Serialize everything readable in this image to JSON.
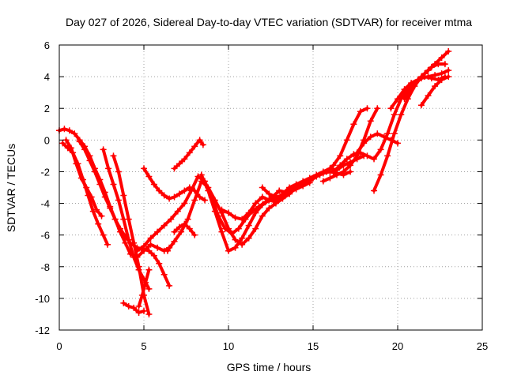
{
  "chart_data": {
    "type": "scatter",
    "title": "Day 027 of 2026, Sidereal Day-to-day VTEC variation (SDTVAR) for receiver mtma",
    "xlabel": "GPS time / hours",
    "ylabel": "SDTVAR / TECUs",
    "xlim": [
      0,
      25
    ],
    "ylim": [
      -12,
      6
    ],
    "xticks": [
      "0",
      "5",
      "10",
      "15",
      "20",
      "25"
    ],
    "yticks": [
      "6",
      "4",
      "2",
      "0",
      "-2",
      "-4",
      "-6",
      "-8",
      "-10",
      "-12"
    ],
    "grid": true,
    "marker": "+",
    "color": "#ff0000",
    "series": [
      {
        "x": [
          0.0,
          0.3,
          0.6,
          0.9,
          1.2,
          1.5,
          1.8,
          2.1,
          2.4,
          2.7,
          3.0,
          3.3,
          3.6,
          3.9,
          4.2,
          4.6,
          5.0,
          5.4,
          5.8,
          6.2,
          6.5
        ],
        "y": [
          0.6,
          0.7,
          0.6,
          0.4,
          0.0,
          -0.4,
          -1.0,
          -1.8,
          -2.5,
          -3.3,
          -4.2,
          -5.0,
          -5.8,
          -6.5,
          -7.2,
          -7.4,
          -7.0,
          -6.6,
          -6.8,
          -7.0,
          -6.8
        ]
      },
      {
        "x": [
          0.2,
          0.5,
          0.8,
          1.1,
          1.4,
          1.7,
          2.0,
          2.3,
          2.6,
          2.85
        ],
        "y": [
          -0.2,
          -0.5,
          -0.8,
          -1.5,
          -2.5,
          -3.5,
          -4.5,
          -5.3,
          -6.0,
          -6.6
        ]
      },
      {
        "x": [
          0.4,
          0.7,
          1.0,
          1.3,
          1.6,
          1.9,
          2.2,
          2.5
        ],
        "y": [
          0.0,
          -0.5,
          -1.5,
          -2.4,
          -3.0,
          -3.6,
          -4.4,
          -4.8
        ]
      },
      {
        "x": [
          1.2,
          1.5,
          1.8,
          2.1,
          2.4,
          2.7,
          3.0,
          3.3,
          3.6,
          3.9,
          4.2,
          4.6,
          5.0,
          5.3,
          5.6,
          5.9,
          6.2,
          6.5
        ],
        "y": [
          -0.1,
          -0.6,
          -1.3,
          -2.0,
          -2.8,
          -3.6,
          -4.3,
          -5.0,
          -5.6,
          -6.1,
          -6.5,
          -6.8,
          -6.9,
          -7.0,
          -7.3,
          -7.8,
          -8.5,
          -9.2
        ]
      },
      {
        "x": [
          2.6,
          2.9,
          3.2,
          3.5,
          3.8,
          4.1,
          4.4,
          4.7,
          5.0,
          5.3
        ],
        "y": [
          -0.6,
          -1.8,
          -2.8,
          -3.8,
          -5.0,
          -6.3,
          -7.4,
          -8.2,
          -8.8,
          -9.4
        ]
      },
      {
        "x": [
          3.2,
          3.5,
          3.8,
          4.1,
          4.4,
          4.7,
          5.0,
          5.3
        ],
        "y": [
          -1.0,
          -2.0,
          -3.5,
          -5.0,
          -6.5,
          -8.0,
          -9.8,
          -11.0
        ]
      },
      {
        "x": [
          3.8,
          4.1,
          4.4,
          4.7,
          5.0
        ],
        "y": [
          -10.3,
          -10.5,
          -10.6,
          -10.9,
          -10.8
        ]
      },
      {
        "x": [
          4.7,
          4.9,
          5.1,
          5.3
        ],
        "y": [
          -10.5,
          -9.8,
          -9.0,
          -8.2
        ]
      },
      {
        "x": [
          4.6,
          5.0,
          5.4,
          5.8,
          6.2,
          6.6,
          7.0,
          7.4,
          7.8,
          8.2,
          8.6,
          9.0,
          9.4,
          9.8,
          10.2,
          10.6,
          11.0,
          11.4,
          11.8,
          12.2,
          12.6,
          13.0,
          13.4,
          13.8,
          14.2,
          14.6
        ],
        "y": [
          -7.0,
          -6.7,
          -6.2,
          -5.8,
          -5.4,
          -5.0,
          -4.5,
          -4.0,
          -3.2,
          -2.3,
          -2.6,
          -3.6,
          -4.8,
          -5.6,
          -5.9,
          -5.6,
          -5.0,
          -4.5,
          -4.2,
          -3.9,
          -3.6,
          -3.2,
          -3.3,
          -3.0,
          -2.8,
          -2.6
        ]
      },
      {
        "x": [
          6.4,
          6.8,
          7.2,
          7.6,
          8.0,
          8.4,
          8.8,
          9.2,
          9.6,
          10.0,
          10.4,
          10.8,
          11.2,
          11.6,
          12.0,
          12.4,
          12.8,
          13.2,
          13.6,
          14.0,
          14.4,
          14.8,
          15.2
        ],
        "y": [
          -7.0,
          -6.4,
          -5.8,
          -5.0,
          -3.8,
          -2.6,
          -3.0,
          -3.8,
          -4.6,
          -5.6,
          -6.3,
          -6.6,
          -6.2,
          -5.6,
          -4.8,
          -4.3,
          -4.0,
          -3.7,
          -3.4,
          -3.0,
          -2.8,
          -2.6,
          -2.3
        ]
      },
      {
        "x": [
          5.0,
          5.3,
          5.6,
          5.9,
          6.2,
          6.5,
          6.8,
          7.1,
          7.4,
          7.7,
          8.0,
          8.3,
          8.6
        ],
        "y": [
          -1.8,
          -2.3,
          -2.8,
          -3.2,
          -3.5,
          -3.7,
          -3.6,
          -3.4,
          -3.2,
          -3.0,
          -3.2,
          -3.6,
          -3.8
        ]
      },
      {
        "x": [
          6.8,
          7.1,
          7.4,
          7.7,
          8.0
        ],
        "y": [
          -5.8,
          -5.5,
          -5.3,
          -5.6,
          -6.0
        ]
      },
      {
        "x": [
          6.8,
          7.1,
          7.4,
          7.7,
          8.0,
          8.3,
          8.5
        ],
        "y": [
          -1.8,
          -1.5,
          -1.2,
          -0.8,
          -0.4,
          0.0,
          -0.3
        ]
      },
      {
        "x": [
          8.4,
          8.8,
          9.2,
          9.6,
          10.0,
          10.4,
          10.8,
          11.2,
          11.6,
          12.0,
          12.4,
          12.8,
          13.2,
          13.6,
          14.0,
          14.4,
          14.8
        ],
        "y": [
          -2.2,
          -3.2,
          -4.5,
          -5.8,
          -7.0,
          -6.8,
          -6.2,
          -5.4,
          -4.6,
          -4.1,
          -3.8,
          -3.6,
          -3.5,
          -3.3,
          -3.1,
          -2.9,
          -2.7
        ]
      },
      {
        "x": [
          9.6,
          10.0,
          10.4,
          10.8,
          11.2,
          11.6,
          12.0,
          12.4,
          12.8,
          13.2,
          13.6,
          14.0,
          14.4,
          14.8,
          15.2,
          15.6,
          16.0,
          16.4,
          16.8,
          17.2,
          17.6,
          18.0
        ],
        "y": [
          -4.4,
          -4.6,
          -4.9,
          -5.0,
          -4.6,
          -4.0,
          -3.6,
          -3.8,
          -3.9,
          -3.6,
          -3.4,
          -3.0,
          -2.8,
          -2.5,
          -2.2,
          -2.0,
          -1.8,
          -1.9,
          -1.6,
          -1.4,
          -1.2,
          -1.0
        ]
      },
      {
        "x": [
          12.0,
          12.4,
          12.8,
          13.2,
          13.6,
          14.0,
          14.4,
          14.8,
          15.2,
          15.6,
          16.0,
          16.4,
          16.8,
          17.2
        ],
        "y": [
          -3.0,
          -3.4,
          -3.8,
          -3.4,
          -3.0,
          -2.8,
          -2.6,
          -2.4,
          -2.2,
          -2.1,
          -2.0,
          -2.1,
          -2.2,
          -2.0
        ]
      },
      {
        "x": [
          15.0,
          15.4,
          15.8,
          16.2,
          16.6,
          17.0,
          17.4,
          17.8,
          18.2
        ],
        "y": [
          -2.4,
          -2.2,
          -2.0,
          -1.6,
          -1.0,
          0.0,
          1.0,
          1.8,
          2.0
        ]
      },
      {
        "x": [
          15.6,
          16.0,
          16.4,
          16.8,
          17.2,
          17.6,
          18.0,
          18.4,
          18.8
        ],
        "y": [
          -2.6,
          -2.4,
          -2.2,
          -2.0,
          -1.6,
          -1.0,
          0.0,
          1.2,
          2.0
        ]
      },
      {
        "x": [
          16.2,
          16.6,
          17.0,
          17.4,
          17.8,
          18.2,
          18.6,
          19.0,
          19.4,
          19.8,
          20.2,
          20.6,
          21.0,
          21.4,
          21.8,
          22.2,
          22.6,
          23.0
        ],
        "y": [
          -2.0,
          -1.6,
          -1.2,
          -0.9,
          -0.8,
          -1.0,
          -1.2,
          -0.6,
          0.4,
          1.6,
          2.6,
          3.2,
          3.6,
          3.9,
          4.0,
          4.1,
          4.2,
          4.4
        ]
      },
      {
        "x": [
          17.6,
          18.0,
          18.4,
          18.8,
          19.2,
          19.6,
          20.0
        ],
        "y": [
          -0.8,
          -0.2,
          0.2,
          0.4,
          0.2,
          0.0,
          -0.2
        ]
      },
      {
        "x": [
          18.6,
          19.0,
          19.4,
          19.8,
          20.2,
          20.6,
          21.0,
          21.4,
          21.8,
          22.2,
          22.6,
          23.0
        ],
        "y": [
          -3.2,
          -2.2,
          -1.0,
          0.4,
          1.6,
          2.6,
          3.4,
          4.0,
          4.4,
          4.8,
          5.2,
          5.6
        ]
      },
      {
        "x": [
          19.6,
          20.0,
          20.4,
          20.8,
          21.2,
          21.6,
          22.0,
          22.4,
          22.8
        ],
        "y": [
          2.0,
          2.6,
          3.2,
          3.6,
          3.8,
          4.0,
          3.9,
          3.8,
          4.0
        ]
      },
      {
        "x": [
          20.4,
          20.8,
          21.2,
          21.6,
          22.0,
          22.4,
          22.8
        ],
        "y": [
          2.6,
          3.2,
          3.8,
          4.2,
          4.6,
          4.8,
          4.8
        ]
      },
      {
        "x": [
          21.4,
          21.8,
          22.2,
          22.6,
          23.0
        ],
        "y": [
          2.2,
          2.8,
          3.4,
          3.8,
          4.0
        ]
      }
    ]
  }
}
